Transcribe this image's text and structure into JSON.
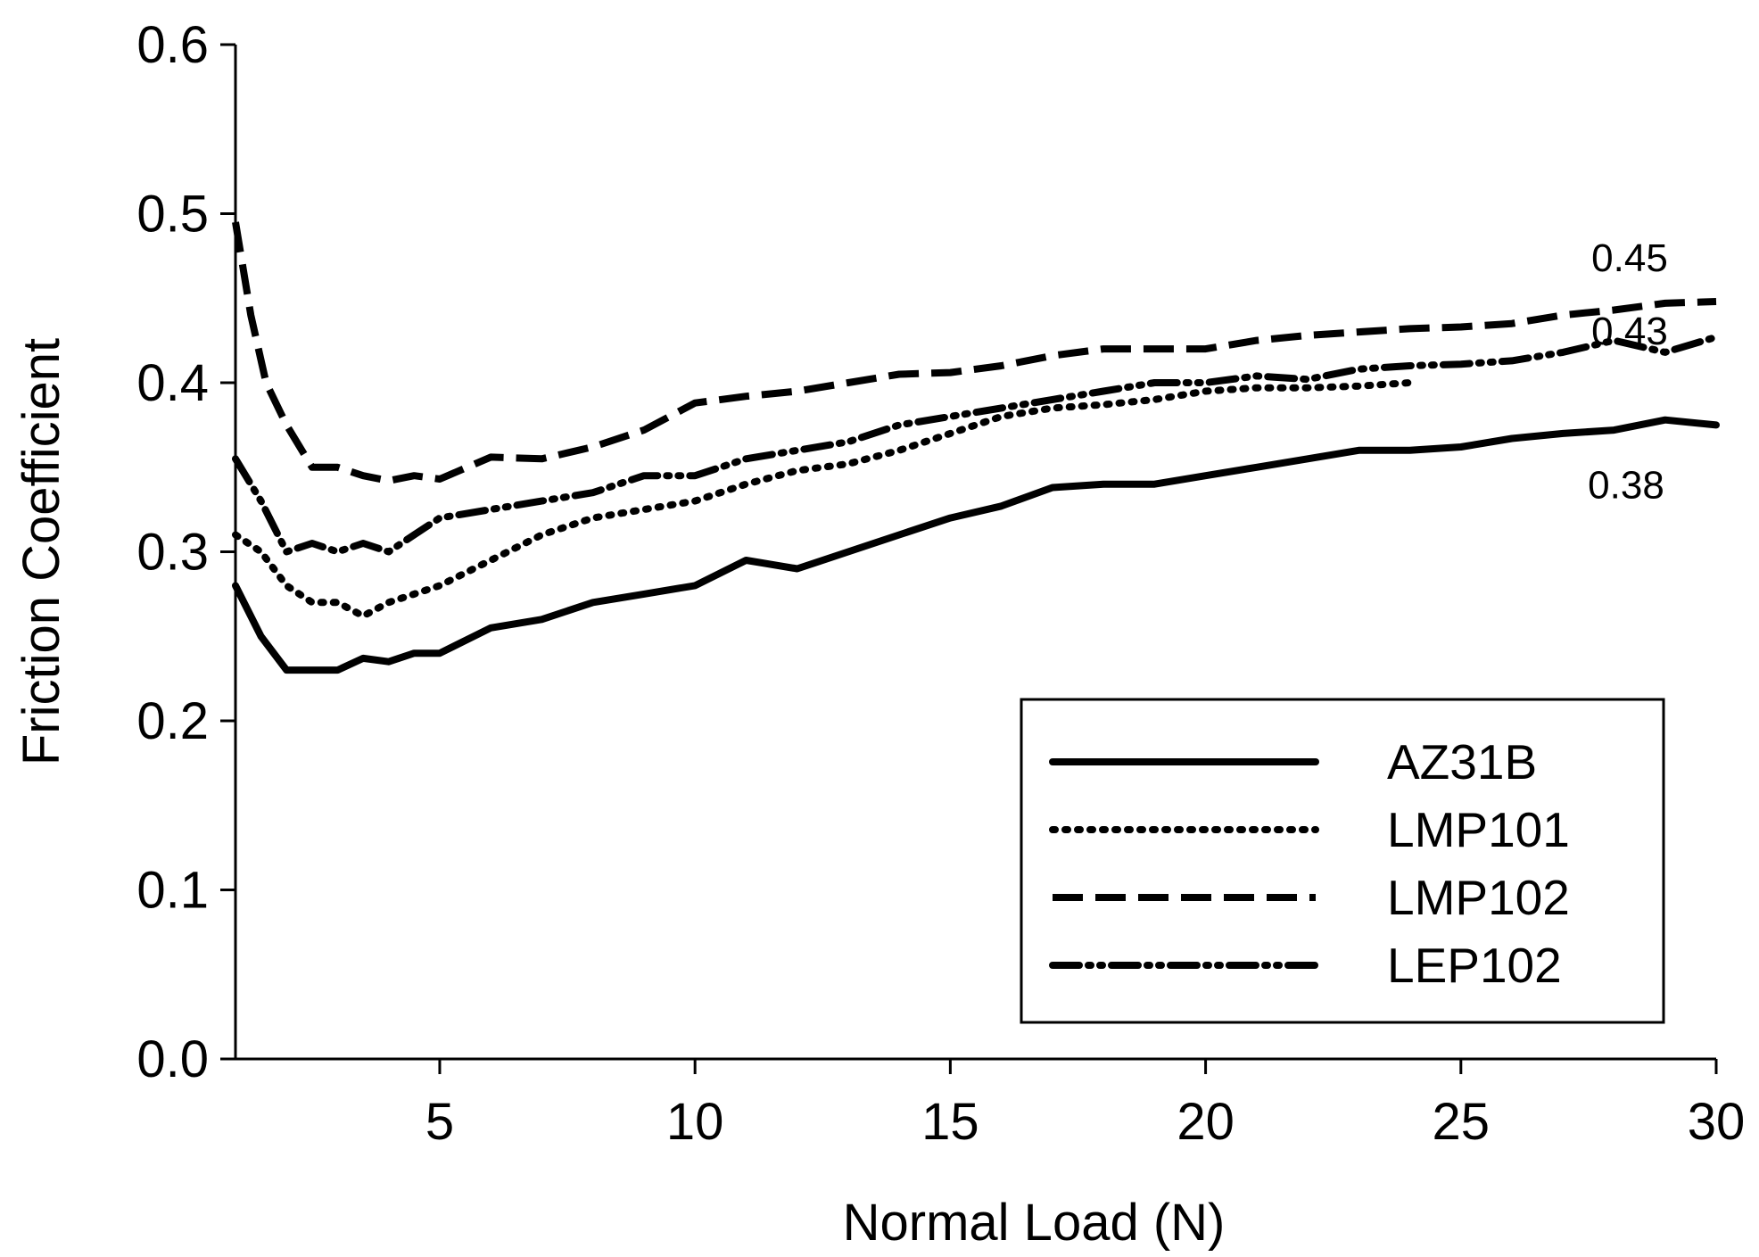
{
  "chart_data": {
    "type": "line",
    "title": "",
    "xlabel": "Normal Load (N)",
    "ylabel": "Friction Coefficient",
    "xlim": [
      1,
      30
    ],
    "ylim": [
      0.0,
      0.6
    ],
    "xticks": [
      5,
      10,
      15,
      20,
      25,
      30
    ],
    "xtick_labels": [
      "5",
      "10",
      "15",
      "20",
      "25",
      "30"
    ],
    "yticks": [
      0.0,
      0.1,
      0.2,
      0.3,
      0.4,
      0.5,
      0.6
    ],
    "ytick_labels": [
      "0.0",
      "0.1",
      "0.2",
      "0.3",
      "0.4",
      "0.5",
      "0.6"
    ],
    "grid": false,
    "legend_position": "bottom-right",
    "series": [
      {
        "name": "AZ31B",
        "style": "solid",
        "x": [
          1,
          1.5,
          2,
          2.5,
          3,
          3.5,
          4,
          4.5,
          5,
          6,
          7,
          8,
          9,
          10,
          11,
          12,
          13,
          14,
          15,
          16,
          17,
          18,
          19,
          20,
          21,
          22,
          23,
          24,
          25,
          26,
          27,
          28,
          29,
          30
        ],
        "y": [
          0.28,
          0.25,
          0.23,
          0.23,
          0.23,
          0.237,
          0.235,
          0.24,
          0.24,
          0.255,
          0.26,
          0.27,
          0.275,
          0.28,
          0.295,
          0.29,
          0.3,
          0.31,
          0.32,
          0.327,
          0.338,
          0.34,
          0.34,
          0.345,
          0.35,
          0.355,
          0.36,
          0.36,
          0.362,
          0.367,
          0.37,
          0.372,
          0.378,
          0.375
        ]
      },
      {
        "name": "LMP101",
        "style": "dotted",
        "x": [
          1,
          1.5,
          2,
          2.5,
          3,
          3.5,
          4,
          4.5,
          5,
          6,
          7,
          8,
          9,
          10,
          11,
          12,
          13,
          14,
          15,
          16,
          17,
          18,
          19,
          20,
          21,
          22,
          23,
          24
        ],
        "y": [
          0.31,
          0.3,
          0.28,
          0.27,
          0.27,
          0.262,
          0.27,
          0.275,
          0.28,
          0.295,
          0.31,
          0.32,
          0.325,
          0.33,
          0.34,
          0.348,
          0.352,
          0.36,
          0.37,
          0.38,
          0.385,
          0.387,
          0.39,
          0.395,
          0.397,
          0.397,
          0.398,
          0.4
        ]
      },
      {
        "name": "LMP102",
        "style": "dashed",
        "x": [
          1,
          1.3,
          1.6,
          2,
          2.5,
          3,
          3.5,
          4,
          4.5,
          5,
          6,
          7,
          8,
          9,
          10,
          11,
          12,
          13,
          14,
          15,
          16,
          17,
          18,
          19,
          20,
          21,
          22,
          23,
          24,
          25,
          26,
          27,
          28,
          29,
          30
        ],
        "y": [
          0.495,
          0.44,
          0.4,
          0.375,
          0.35,
          0.35,
          0.345,
          0.342,
          0.345,
          0.343,
          0.356,
          0.355,
          0.362,
          0.372,
          0.388,
          0.392,
          0.395,
          0.4,
          0.405,
          0.406,
          0.41,
          0.416,
          0.42,
          0.42,
          0.42,
          0.425,
          0.428,
          0.43,
          0.432,
          0.433,
          0.435,
          0.44,
          0.443,
          0.447,
          0.448
        ]
      },
      {
        "name": "LEP102",
        "style": "dash-dot-dot",
        "x": [
          1,
          1.5,
          2,
          2.5,
          3,
          3.5,
          4,
          4.5,
          5,
          6,
          7,
          8,
          9,
          10,
          11,
          12,
          13,
          14,
          15,
          16,
          17,
          18,
          19,
          20,
          21,
          22,
          23,
          24,
          25,
          26,
          27,
          28,
          29,
          30
        ],
        "y": [
          0.355,
          0.33,
          0.3,
          0.305,
          0.3,
          0.305,
          0.3,
          0.31,
          0.32,
          0.325,
          0.33,
          0.335,
          0.345,
          0.345,
          0.355,
          0.36,
          0.365,
          0.375,
          0.38,
          0.385,
          0.39,
          0.395,
          0.4,
          0.4,
          0.404,
          0.402,
          0.408,
          0.41,
          0.411,
          0.413,
          0.418,
          0.425,
          0.418,
          0.427
        ]
      }
    ],
    "annotations": [
      {
        "text": "0.45",
        "series": "LMP102"
      },
      {
        "text": "0.43",
        "series": "LEP102"
      },
      {
        "text": "0.38",
        "series": "AZ31B"
      }
    ]
  }
}
